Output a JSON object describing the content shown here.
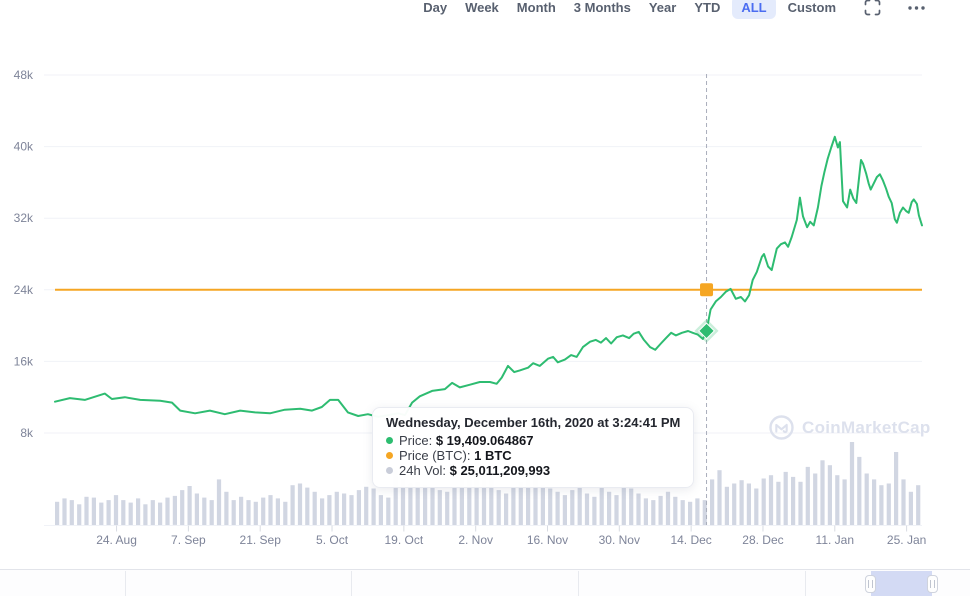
{
  "toolbar": {
    "ranges": [
      {
        "id": "day",
        "label": "Day",
        "selected": false
      },
      {
        "id": "week",
        "label": "Week",
        "selected": false
      },
      {
        "id": "month",
        "label": "Month",
        "selected": false
      },
      {
        "id": "3months",
        "label": "3 Months",
        "selected": false
      },
      {
        "id": "year",
        "label": "Year",
        "selected": false
      },
      {
        "id": "ytd",
        "label": "YTD",
        "selected": false
      },
      {
        "id": "all",
        "label": "ALL",
        "selected": true
      },
      {
        "id": "custom",
        "label": "Custom",
        "selected": false
      }
    ]
  },
  "watermark": {
    "label": "CoinMarketCap"
  },
  "tooltip": {
    "title": "Wednesday, December 16th, 2020 at 3:24:41 PM",
    "rows": [
      {
        "name": "price",
        "label": "Price:",
        "value": "$ 19,409.064867",
        "bullet": "#2dbd70"
      },
      {
        "name": "price-btc",
        "label": "Price (BTC):",
        "value": "1 BTC",
        "bullet": "#f5a623"
      },
      {
        "name": "vol",
        "label": "24h Vol:",
        "value": "$ 25,011,209,993",
        "bullet": "#c9cdd9"
      }
    ]
  },
  "chart_data": {
    "type": "line",
    "x_axis": {
      "unit": "days-from-left-edge (left edge ≈ 12 Aug 2020, right edge ≈ 28 Jan 2021)",
      "range": [
        0,
        169
      ],
      "ticks": [
        {
          "d": 12,
          "label": "24. Aug"
        },
        {
          "d": 26,
          "label": "7. Sep"
        },
        {
          "d": 40,
          "label": "21. Sep"
        },
        {
          "d": 54,
          "label": "5. Oct"
        },
        {
          "d": 68,
          "label": "19. Oct"
        },
        {
          "d": 82,
          "label": "2. Nov"
        },
        {
          "d": 96,
          "label": "16. Nov"
        },
        {
          "d": 110,
          "label": "30. Nov"
        },
        {
          "d": 124,
          "label": "14. Dec"
        },
        {
          "d": 138,
          "label": "28. Dec"
        },
        {
          "d": 152,
          "label": "11. Jan"
        },
        {
          "d": 166,
          "label": "25. Jan"
        }
      ]
    },
    "y_axis": {
      "unit": "USD thousands",
      "range": [
        8,
        48
      ],
      "ticks": [
        48,
        40,
        32,
        24,
        16,
        8
      ],
      "tick_suffix": "k"
    },
    "grid": true,
    "series": [
      {
        "name": "Price",
        "type": "line",
        "color": "#2ebc71",
        "unit": "USD (k)",
        "points": [
          [
            0,
            11.5
          ],
          [
            2.9,
            11.9
          ],
          [
            5.8,
            11.7
          ],
          [
            9.7,
            12.4
          ],
          [
            11.1,
            11.8
          ],
          [
            13.6,
            12.0
          ],
          [
            16.6,
            11.7
          ],
          [
            20.5,
            11.6
          ],
          [
            22.8,
            11.4
          ],
          [
            24.4,
            10.5
          ],
          [
            27.3,
            10.2
          ],
          [
            30.2,
            10.5
          ],
          [
            33.1,
            10.1
          ],
          [
            36.1,
            10.5
          ],
          [
            39,
            10.3
          ],
          [
            41.9,
            10.2
          ],
          [
            44.8,
            10.6
          ],
          [
            47.8,
            10.7
          ],
          [
            50.1,
            10.5
          ],
          [
            52,
            10.9
          ],
          [
            53.6,
            11.7
          ],
          [
            55.2,
            11.7
          ],
          [
            57.1,
            10.3
          ],
          [
            59.1,
            9.9
          ],
          [
            61,
            10.1
          ],
          [
            63,
            9.8
          ],
          [
            64.9,
            10.0
          ],
          [
            66.9,
            10.2
          ],
          [
            68.2,
            10.0
          ],
          [
            69.6,
            11.4
          ],
          [
            71.1,
            12.1
          ],
          [
            73.5,
            12.7
          ],
          [
            76,
            12.9
          ],
          [
            77.4,
            13.6
          ],
          [
            78.9,
            13.1
          ],
          [
            80.9,
            13.4
          ],
          [
            82.8,
            13.7
          ],
          [
            84.8,
            13.7
          ],
          [
            86.1,
            13.5
          ],
          [
            87.1,
            14.2
          ],
          [
            88.3,
            15.5
          ],
          [
            89.5,
            14.8
          ],
          [
            90.6,
            15.0
          ],
          [
            92.2,
            15.3
          ],
          [
            93.2,
            15.8
          ],
          [
            94.5,
            15.5
          ],
          [
            96.1,
            16.3
          ],
          [
            97.1,
            16.5
          ],
          [
            98,
            15.9
          ],
          [
            99.4,
            16.2
          ],
          [
            100.6,
            16.7
          ],
          [
            101.7,
            16.5
          ],
          [
            102.9,
            17.6
          ],
          [
            104.3,
            18.2
          ],
          [
            105.4,
            18.4
          ],
          [
            106.4,
            18.1
          ],
          [
            107.4,
            18.6
          ],
          [
            108.4,
            18.0
          ],
          [
            109.5,
            18.7
          ],
          [
            110.7,
            18.9
          ],
          [
            111.9,
            18.6
          ],
          [
            112.8,
            19.1
          ],
          [
            113.8,
            19.3
          ],
          [
            114.8,
            18.4
          ],
          [
            116,
            17.6
          ],
          [
            117,
            17.3
          ],
          [
            118.1,
            18.0
          ],
          [
            119.1,
            18.6
          ],
          [
            120.1,
            19.2
          ],
          [
            121,
            18.9
          ],
          [
            122.2,
            19.2
          ],
          [
            123.4,
            19.4
          ],
          [
            124.3,
            19.2
          ],
          [
            125.3,
            19.0
          ],
          [
            126.3,
            18.5
          ],
          [
            127,
            19.4
          ],
          [
            127.8,
            21.8
          ],
          [
            128.8,
            22.7
          ],
          [
            129.8,
            23.2
          ],
          [
            130.8,
            23.8
          ],
          [
            131.7,
            24.1
          ],
          [
            132.7,
            23.0
          ],
          [
            133.7,
            23.2
          ],
          [
            134.5,
            22.7
          ],
          [
            135.3,
            23.4
          ],
          [
            136,
            25.1
          ],
          [
            136.8,
            26.0
          ],
          [
            137.8,
            27.7
          ],
          [
            138.2,
            28.0
          ],
          [
            139,
            26.6
          ],
          [
            139.7,
            26.2
          ],
          [
            140.7,
            28.6
          ],
          [
            141.5,
            29.1
          ],
          [
            142.3,
            29.3
          ],
          [
            142.9,
            28.8
          ],
          [
            143.6,
            29.9
          ],
          [
            144.6,
            31.8
          ],
          [
            145.2,
            34.3
          ],
          [
            145.8,
            32.2
          ],
          [
            146.6,
            31.0
          ],
          [
            147.2,
            31.6
          ],
          [
            147.9,
            31.2
          ],
          [
            148.7,
            33.2
          ],
          [
            149.4,
            35.6
          ],
          [
            150,
            37.2
          ],
          [
            150.6,
            38.6
          ],
          [
            151.3,
            39.9
          ],
          [
            152,
            41.1
          ],
          [
            152.6,
            39.9
          ],
          [
            153,
            40.5
          ],
          [
            153.6,
            33.9
          ],
          [
            154.4,
            33.2
          ],
          [
            155,
            35.2
          ],
          [
            155.6,
            34.2
          ],
          [
            156.2,
            33.7
          ],
          [
            157.1,
            38.5
          ],
          [
            157.5,
            38.1
          ],
          [
            158.1,
            37.0
          ],
          [
            158.6,
            35.9
          ],
          [
            159,
            35.2
          ],
          [
            159.6,
            35.9
          ],
          [
            160.2,
            36.6
          ],
          [
            160.8,
            36.9
          ],
          [
            161.4,
            36.2
          ],
          [
            162,
            35.3
          ],
          [
            162.5,
            34.4
          ],
          [
            163.1,
            33.7
          ],
          [
            163.7,
            31.9
          ],
          [
            164.1,
            31.5
          ],
          [
            164.7,
            32.6
          ],
          [
            165.3,
            33.2
          ],
          [
            165.9,
            32.8
          ],
          [
            166.4,
            32.6
          ],
          [
            167,
            33.8
          ],
          [
            167.4,
            34.1
          ],
          [
            168,
            33.6
          ],
          [
            168.4,
            32.3
          ],
          [
            169,
            31.2
          ]
        ]
      },
      {
        "name": "Price (BTC)",
        "type": "hline",
        "color": "#f5a623",
        "value": 24,
        "display_value": "1 BTC"
      },
      {
        "name": "24h Vol",
        "type": "bars",
        "color": "#c9cfdd",
        "unit": "relative height 0-1",
        "values": [
          0.28,
          0.32,
          0.3,
          0.25,
          0.34,
          0.33,
          0.27,
          0.3,
          0.36,
          0.3,
          0.27,
          0.32,
          0.25,
          0.3,
          0.27,
          0.33,
          0.35,
          0.42,
          0.47,
          0.38,
          0.33,
          0.3,
          0.55,
          0.4,
          0.3,
          0.34,
          0.3,
          0.28,
          0.33,
          0.36,
          0.32,
          0.28,
          0.48,
          0.5,
          0.45,
          0.4,
          0.32,
          0.36,
          0.4,
          0.38,
          0.36,
          0.42,
          0.46,
          0.44,
          0.36,
          0.33,
          0.66,
          0.55,
          0.5,
          0.52,
          0.48,
          0.45,
          0.42,
          0.4,
          0.45,
          0.58,
          0.72,
          0.84,
          0.78,
          0.6,
          0.42,
          0.38,
          0.45,
          0.52,
          0.56,
          0.6,
          0.48,
          0.44,
          0.4,
          0.36,
          0.42,
          0.48,
          0.38,
          0.34,
          0.45,
          0.4,
          0.36,
          0.5,
          0.44,
          0.38,
          0.32,
          0.3,
          0.35,
          0.4,
          0.34,
          0.3,
          0.28,
          0.32,
          0.3,
          0.55,
          0.66,
          0.46,
          0.5,
          0.54,
          0.5,
          0.44,
          0.56,
          0.6,
          0.52,
          0.64,
          0.58,
          0.52,
          0.7,
          0.62,
          0.78,
          0.72,
          0.6,
          0.55,
          1.0,
          0.82,
          0.62,
          0.55,
          0.48,
          0.5,
          0.88,
          0.55,
          0.4,
          0.48
        ]
      }
    ],
    "crosshair": {
      "day": 127,
      "price_marker": 19.409,
      "btc_marker": 24
    },
    "colors": {
      "grid": "#f0f2f7",
      "axis_label": "#7e8499",
      "tick": "#d8dbe2",
      "crosshair": "#a9aebb"
    },
    "legend_position": "tooltip"
  }
}
